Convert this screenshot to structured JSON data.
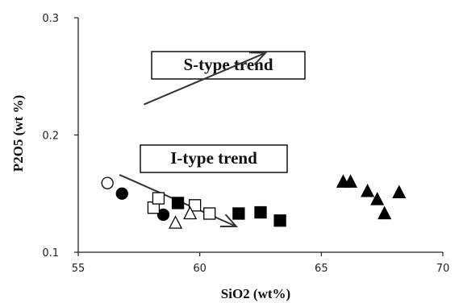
{
  "chart_data": {
    "type": "scatter",
    "xlabel": "SiO2 (wt%)",
    "ylabel": "P2O5 (wt %)",
    "xlim": [
      55,
      70
    ],
    "ylim": [
      0.1,
      0.3
    ],
    "x_ticks": [
      {
        "value": 55,
        "label": "55"
      },
      {
        "value": 60,
        "label": "60"
      },
      {
        "value": 65,
        "label": "65"
      },
      {
        "value": 70,
        "label": "70"
      }
    ],
    "y_ticks": [
      {
        "value": 0.1,
        "label": "0.1"
      },
      {
        "value": 0.2,
        "label": "0.2"
      },
      {
        "value": 0.3,
        "label": "0.3"
      }
    ],
    "grid": false,
    "annotations": [
      {
        "text": "S-type trend",
        "boxed": true,
        "arrow_from": [
          57.7,
          0.226
        ],
        "arrow_to": [
          62.7,
          0.27
        ]
      },
      {
        "text": "I-type trend",
        "boxed": true,
        "arrow_from": [
          56.7,
          0.166
        ],
        "arrow_to": [
          61.5,
          0.122
        ]
      }
    ],
    "series": [
      {
        "marker": "open-circle",
        "points": [
          [
            56.2,
            0.159
          ]
        ]
      },
      {
        "marker": "filled-circle",
        "points": [
          [
            56.8,
            0.15
          ],
          [
            58.5,
            0.132
          ]
        ]
      },
      {
        "marker": "open-square",
        "points": [
          [
            58.1,
            0.138
          ],
          [
            58.3,
            0.146
          ],
          [
            59.8,
            0.14
          ],
          [
            60.4,
            0.133
          ]
        ]
      },
      {
        "marker": "filled-square",
        "points": [
          [
            59.1,
            0.142
          ],
          [
            61.6,
            0.133
          ],
          [
            62.5,
            0.134
          ],
          [
            63.3,
            0.127
          ]
        ]
      },
      {
        "marker": "open-triangle",
        "points": [
          [
            59.0,
            0.125
          ],
          [
            59.6,
            0.133
          ]
        ]
      },
      {
        "marker": "filled-triangle",
        "points": [
          [
            65.9,
            0.16
          ],
          [
            66.2,
            0.16
          ],
          [
            66.9,
            0.152
          ],
          [
            67.3,
            0.145
          ],
          [
            67.6,
            0.133
          ],
          [
            68.2,
            0.151
          ]
        ]
      }
    ]
  }
}
